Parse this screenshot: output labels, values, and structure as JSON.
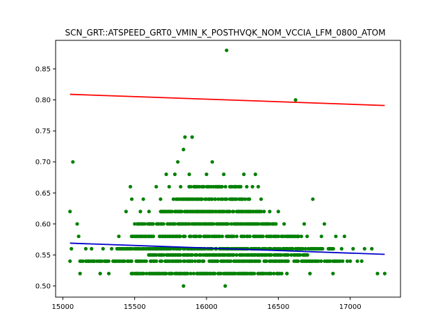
{
  "chart_data": {
    "type": "scatter",
    "title": "SCN_GRT::ATSPEED_GRT0_VMIN_K_POSTHVQK_NOM_VCCIA_LFM_0800_ATOM",
    "xlabel": "",
    "ylabel": "",
    "xlim": [
      14950,
      17350
    ],
    "ylim": [
      0.482,
      0.896
    ],
    "x_ticks": [
      15000,
      15500,
      16000,
      16500,
      17000
    ],
    "y_ticks": [
      0.5,
      0.55,
      0.6,
      0.65,
      0.7,
      0.75,
      0.8,
      0.85
    ],
    "x_tick_labels": [
      "15000",
      "15500",
      "16000",
      "16500",
      "17000"
    ],
    "y_tick_labels": [
      "0.50",
      "0.55",
      "0.60",
      "0.65",
      "0.70",
      "0.75",
      "0.80",
      "0.85"
    ],
    "grid": false,
    "series": [
      {
        "kind": "points",
        "color": "#008000",
        "points": [
          [
            15050,
            0.62
          ],
          [
            15060,
            0.56
          ],
          [
            15070,
            0.7
          ],
          [
            15050,
            0.54
          ],
          [
            15100,
            0.6
          ],
          [
            15120,
            0.52
          ],
          [
            15110,
            0.58
          ],
          [
            15160,
            0.56
          ],
          [
            15180,
            0.54
          ],
          [
            15200,
            0.56
          ],
          [
            15220,
            0.54
          ],
          [
            15260,
            0.52
          ],
          [
            15280,
            0.56
          ],
          [
            15300,
            0.54
          ],
          [
            15320,
            0.52
          ],
          [
            15340,
            0.56
          ],
          [
            15360,
            0.54
          ],
          [
            15390,
            0.58
          ],
          [
            15420,
            0.56
          ],
          [
            15440,
            0.62
          ],
          [
            15470,
            0.66
          ],
          [
            15480,
            0.64
          ],
          [
            15500,
            0.6
          ],
          [
            15520,
            0.56
          ],
          [
            15540,
            0.62
          ],
          [
            15560,
            0.64
          ],
          [
            15600,
            0.62
          ],
          [
            15620,
            0.6
          ],
          [
            15650,
            0.66
          ],
          [
            15680,
            0.64
          ],
          [
            15700,
            0.62
          ],
          [
            15720,
            0.68
          ],
          [
            15740,
            0.66
          ],
          [
            15760,
            0.62
          ],
          [
            15780,
            0.68
          ],
          [
            15800,
            0.7
          ],
          [
            15820,
            0.66
          ],
          [
            15840,
            0.72
          ],
          [
            15850,
            0.74
          ],
          [
            15860,
            0.64
          ],
          [
            15880,
            0.68
          ],
          [
            15900,
            0.74
          ],
          [
            15920,
            0.66
          ],
          [
            15940,
            0.62
          ],
          [
            15960,
            0.64
          ],
          [
            15980,
            0.66
          ],
          [
            16000,
            0.68
          ],
          [
            16020,
            0.62
          ],
          [
            16040,
            0.7
          ],
          [
            16060,
            0.64
          ],
          [
            16080,
            0.66
          ],
          [
            16100,
            0.64
          ],
          [
            16120,
            0.68
          ],
          [
            16140,
            0.88
          ],
          [
            16160,
            0.62
          ],
          [
            16180,
            0.64
          ],
          [
            16200,
            0.66
          ],
          [
            16220,
            0.62
          ],
          [
            16240,
            0.64
          ],
          [
            16260,
            0.68
          ],
          [
            16280,
            0.66
          ],
          [
            16300,
            0.62
          ],
          [
            16320,
            0.66
          ],
          [
            16340,
            0.68
          ],
          [
            16360,
            0.66
          ],
          [
            16380,
            0.64
          ],
          [
            16400,
            0.62
          ],
          [
            16420,
            0.6
          ],
          [
            16440,
            0.62
          ],
          [
            16460,
            0.6
          ],
          [
            16500,
            0.62
          ],
          [
            16540,
            0.6
          ],
          [
            16580,
            0.58
          ],
          [
            16620,
            0.8
          ],
          [
            16640,
            0.58
          ],
          [
            16680,
            0.6
          ],
          [
            16700,
            0.58
          ],
          [
            16740,
            0.64
          ],
          [
            16760,
            0.56
          ],
          [
            16800,
            0.58
          ],
          [
            16820,
            0.6
          ],
          [
            16860,
            0.56
          ],
          [
            16900,
            0.58
          ],
          [
            16940,
            0.56
          ],
          [
            16980,
            0.54
          ],
          [
            17020,
            0.56
          ],
          [
            17050,
            0.54
          ],
          [
            17080,
            0.54
          ],
          [
            17100,
            0.56
          ],
          [
            17150,
            0.56
          ],
          [
            17190,
            0.52
          ],
          [
            17240,
            0.52
          ],
          [
            15840,
            0.5
          ],
          [
            16130,
            0.5
          ],
          [
            16560,
            0.52
          ],
          [
            16600,
            0.56
          ],
          [
            16660,
            0.58
          ],
          [
            16720,
            0.52
          ],
          [
            16840,
            0.54
          ],
          [
            16880,
            0.52
          ],
          [
            16960,
            0.58
          ],
          [
            17000,
            0.54
          ]
        ],
        "bands": [
          {
            "y": 0.54,
            "x_from": 15120,
            "x_to": 16950
          },
          {
            "y": 0.56,
            "x_from": 15380,
            "x_to": 16880
          },
          {
            "y": 0.58,
            "x_from": 15480,
            "x_to": 16640
          },
          {
            "y": 0.52,
            "x_from": 15480,
            "x_to": 16520
          },
          {
            "y": 0.6,
            "x_from": 15520,
            "x_to": 16480
          },
          {
            "y": 0.62,
            "x_from": 15680,
            "x_to": 16380
          },
          {
            "y": 0.64,
            "x_from": 15760,
            "x_to": 16300
          },
          {
            "y": 0.66,
            "x_from": 15880,
            "x_to": 16240
          },
          {
            "y": 0.55,
            "x_from": 15600,
            "x_to": 16700
          }
        ]
      },
      {
        "kind": "line",
        "color": "#ff0000",
        "x": [
          15050,
          17240
        ],
        "y": [
          0.809,
          0.791
        ]
      },
      {
        "kind": "line",
        "color": "#0000cc",
        "x": [
          15050,
          17240
        ],
        "y": [
          0.569,
          0.551
        ]
      }
    ]
  }
}
